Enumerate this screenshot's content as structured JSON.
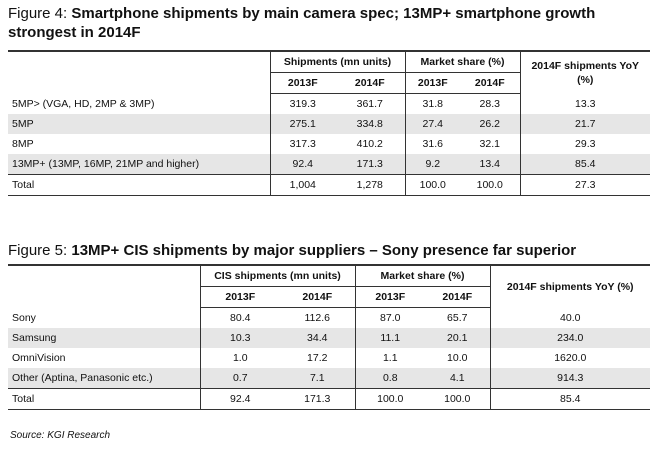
{
  "figure4": {
    "label": "Figure 4:",
    "title": "Smartphone shipments by main camera spec; 13MP+ smartphone growth strongest in 2014F",
    "header": {
      "groups": [
        "Shipments (mn units)",
        "Market share (%)",
        "2014F shipments YoY (%)"
      ],
      "years": [
        "2013F",
        "2014F",
        "2013F",
        "2014F"
      ]
    },
    "rows": [
      [
        "5MP> (VGA, HD, 2MP & 3MP)",
        "319.3",
        "361.7",
        "31.8",
        "28.3",
        "13.3"
      ],
      [
        "5MP",
        "275.1",
        "334.8",
        "27.4",
        "26.2",
        "21.7"
      ],
      [
        "8MP",
        "317.3",
        "410.2",
        "31.6",
        "32.1",
        "29.3"
      ],
      [
        "13MP+ (13MP, 16MP, 21MP and higher)",
        "92.4",
        "171.3",
        "9.2",
        "13.4",
        "85.4"
      ],
      [
        "Total",
        "1,004",
        "1,278",
        "100.0",
        "100.0",
        "27.3"
      ]
    ]
  },
  "figure5": {
    "label": "Figure 5:",
    "title": "13MP+ CIS shipments by major suppliers – Sony presence far superior",
    "header": {
      "groups": [
        "CIS shipments (mn units)",
        "Market share (%)",
        "2014F shipments YoY (%)"
      ],
      "years": [
        "2013F",
        "2014F",
        "2013F",
        "2014F"
      ]
    },
    "rows": [
      [
        "Sony",
        "80.4",
        "112.6",
        "87.0",
        "65.7",
        "40.0"
      ],
      [
        "Samsung",
        "10.3",
        "34.4",
        "11.1",
        "20.1",
        "234.0"
      ],
      [
        "OmniVision",
        "1.0",
        "17.2",
        "1.1",
        "10.0",
        "1620.0"
      ],
      [
        "Other (Aptina, Panasonic etc.)",
        "0.7",
        "7.1",
        "0.8",
        "4.1",
        "914.3"
      ],
      [
        "Total",
        "92.4",
        "171.3",
        "100.0",
        "100.0",
        "85.4"
      ]
    ]
  },
  "source": "Source: KGI Research"
}
